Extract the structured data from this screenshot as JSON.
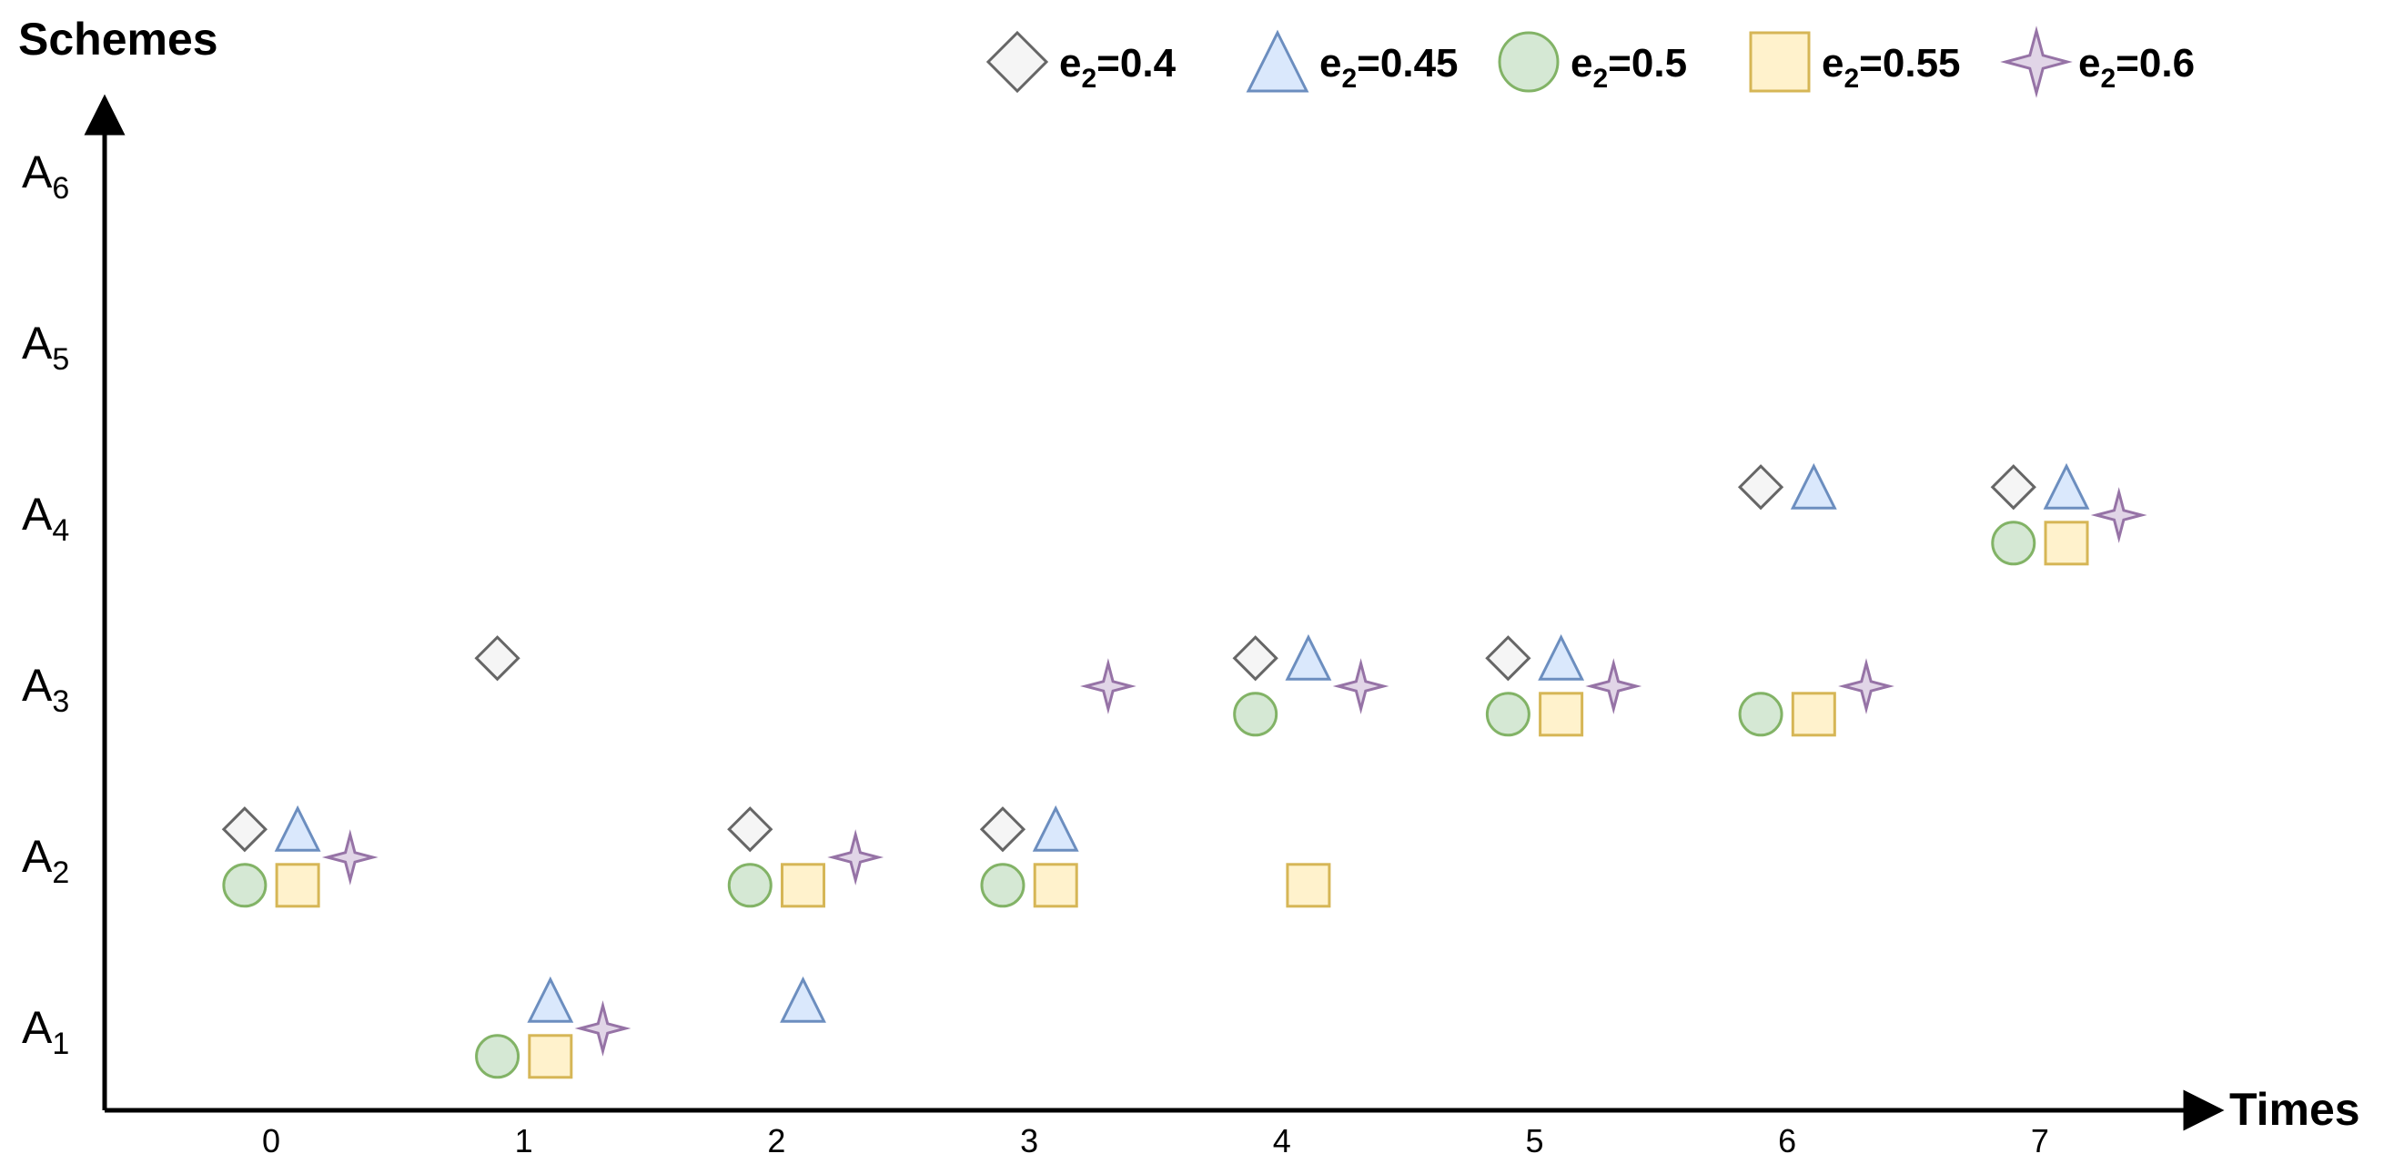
{
  "chart_data": {
    "type": "scatter",
    "xlabel": "Times",
    "ylabel": "Schemes",
    "x": [
      0,
      1,
      2,
      3,
      4,
      5,
      6,
      7
    ],
    "y_categories": [
      {
        "base": "A",
        "sub": "1",
        "value": 1
      },
      {
        "base": "A",
        "sub": "2",
        "value": 2
      },
      {
        "base": "A",
        "sub": "3",
        "value": 3
      },
      {
        "base": "A",
        "sub": "4",
        "value": 4
      },
      {
        "base": "A",
        "sub": "5",
        "value": 5
      },
      {
        "base": "A",
        "sub": "6",
        "value": 6
      }
    ],
    "grid": false,
    "legend_position": "top",
    "series": [
      {
        "label": {
          "base": "e",
          "sub": "2",
          "rest": "=0.4"
        },
        "marker": "diamond",
        "fill": "#f5f5f5",
        "stroke": "#666666",
        "points": [
          {
            "x": 0,
            "y": 2
          },
          {
            "x": 1,
            "y": 3
          },
          {
            "x": 2,
            "y": 2
          },
          {
            "x": 3,
            "y": 2
          },
          {
            "x": 4,
            "y": 3
          },
          {
            "x": 5,
            "y": 3
          },
          {
            "x": 6,
            "y": 4
          },
          {
            "x": 7,
            "y": 4
          }
        ]
      },
      {
        "label": {
          "base": "e",
          "sub": "2",
          "rest": "=0.45"
        },
        "marker": "triangle",
        "fill": "#dae8fc",
        "stroke": "#6c8ebf",
        "points": [
          {
            "x": 0,
            "y": 2
          },
          {
            "x": 1,
            "y": 1
          },
          {
            "x": 2,
            "y": 1
          },
          {
            "x": 3,
            "y": 2
          },
          {
            "x": 4,
            "y": 3
          },
          {
            "x": 5,
            "y": 3
          },
          {
            "x": 6,
            "y": 4
          },
          {
            "x": 7,
            "y": 4
          }
        ]
      },
      {
        "label": {
          "base": "e",
          "sub": "2",
          "rest": "=0.5"
        },
        "marker": "circle",
        "fill": "#d5e8d4",
        "stroke": "#82b366",
        "points": [
          {
            "x": 0,
            "y": 2
          },
          {
            "x": 1,
            "y": 1
          },
          {
            "x": 2,
            "y": 2
          },
          {
            "x": 3,
            "y": 2
          },
          {
            "x": 4,
            "y": 3
          },
          {
            "x": 5,
            "y": 3
          },
          {
            "x": 6,
            "y": 3
          },
          {
            "x": 7,
            "y": 4
          }
        ]
      },
      {
        "label": {
          "base": "e",
          "sub": "2",
          "rest": "=0.55"
        },
        "marker": "square",
        "fill": "#fff2cc",
        "stroke": "#d6b656",
        "points": [
          {
            "x": 0,
            "y": 2
          },
          {
            "x": 1,
            "y": 1
          },
          {
            "x": 2,
            "y": 2
          },
          {
            "x": 3,
            "y": 2
          },
          {
            "x": 4,
            "y": 2
          },
          {
            "x": 5,
            "y": 3
          },
          {
            "x": 6,
            "y": 3
          },
          {
            "x": 7,
            "y": 4
          }
        ]
      },
      {
        "label": {
          "base": "e",
          "sub": "2",
          "rest": "=0.6"
        },
        "marker": "star",
        "fill": "#e1d5e7",
        "stroke": "#9673a6",
        "points": [
          {
            "x": 0,
            "y": 2
          },
          {
            "x": 1,
            "y": 1
          },
          {
            "x": 2,
            "y": 2
          },
          {
            "x": 3,
            "y": 3
          },
          {
            "x": 4,
            "y": 3
          },
          {
            "x": 5,
            "y": 3
          },
          {
            "x": 6,
            "y": 3
          },
          {
            "x": 7,
            "y": 4
          }
        ]
      }
    ]
  }
}
